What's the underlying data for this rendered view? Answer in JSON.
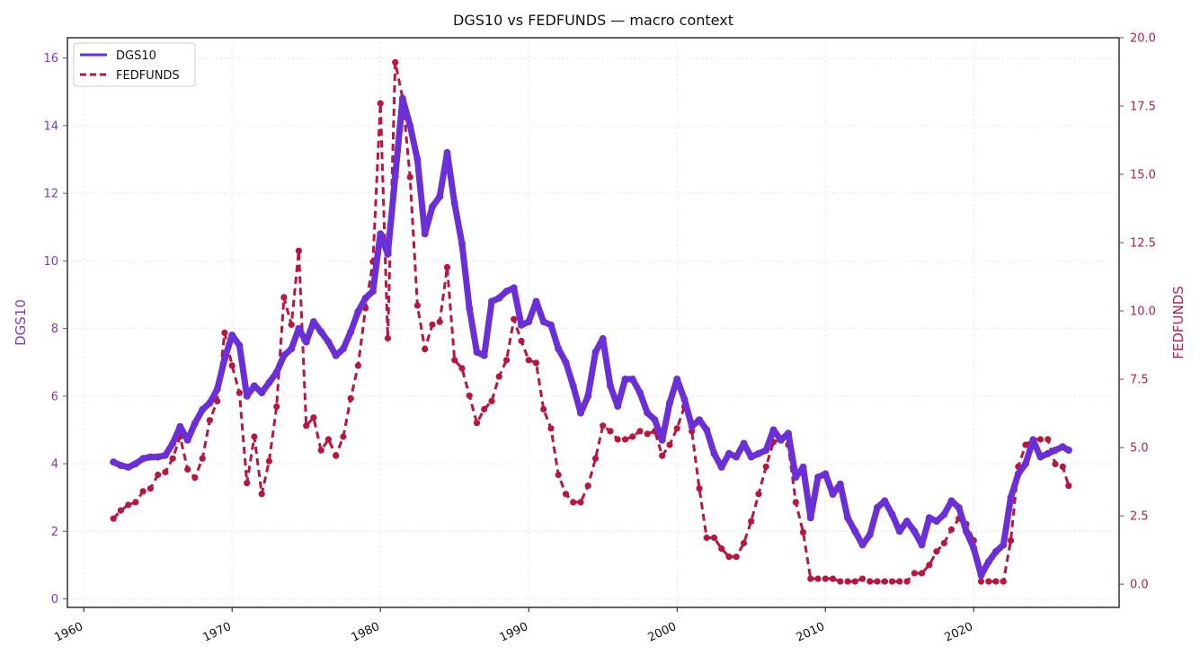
{
  "colors": {
    "dgs10": "#6a2fd6",
    "fedfunds": "#b8163f",
    "left_axis": "#7a3fc4",
    "right_axis": "#b5214f",
    "grid": "#e4e4e4"
  },
  "chart_data": {
    "type": "line",
    "title": "DGS10 vs FEDFUNDS — macro context",
    "xlabel": "",
    "ylabel_left": "DGS10",
    "ylabel_right": "FEDFUNDS",
    "xlim": [
      1958.9,
      2029.8
    ],
    "ylim_left": [
      -0.25,
      16.6
    ],
    "ylim_right": [
      -0.85,
      20.0
    ],
    "x_ticks": [
      "1960",
      "1970",
      "1980",
      "1990",
      "2000",
      "2010",
      "2020"
    ],
    "y_left_ticks": [
      "0",
      "2",
      "4",
      "6",
      "8",
      "10",
      "12",
      "14",
      "16"
    ],
    "y_right_ticks": [
      "0.0",
      "2.5",
      "5.0",
      "7.5",
      "10.0",
      "12.5",
      "15.0",
      "17.5",
      "20.0"
    ],
    "grid": true,
    "legend_position": "top-left",
    "series": [
      {
        "name": "DGS10",
        "axis": "left",
        "style": "solid",
        "x": [
          1962.0,
          1962.5,
          1963.0,
          1963.5,
          1964.0,
          1964.5,
          1965.0,
          1965.5,
          1966.0,
          1966.5,
          1967.0,
          1967.5,
          1968.0,
          1968.5,
          1969.0,
          1969.5,
          1970.0,
          1970.5,
          1971.0,
          1971.5,
          1972.0,
          1972.5,
          1973.0,
          1973.5,
          1974.0,
          1974.5,
          1975.0,
          1975.5,
          1976.0,
          1976.5,
          1977.0,
          1977.5,
          1978.0,
          1978.5,
          1979.0,
          1979.5,
          1980.0,
          1980.5,
          1981.0,
          1981.5,
          1982.0,
          1982.5,
          1983.0,
          1983.5,
          1984.0,
          1984.5,
          1985.0,
          1985.5,
          1986.0,
          1986.5,
          1987.0,
          1987.5,
          1988.0,
          1988.5,
          1989.0,
          1989.5,
          1990.0,
          1990.5,
          1991.0,
          1991.5,
          1992.0,
          1992.5,
          1993.0,
          1993.5,
          1994.0,
          1994.5,
          1995.0,
          1995.5,
          1996.0,
          1996.5,
          1997.0,
          1997.5,
          1998.0,
          1998.5,
          1999.0,
          1999.5,
          2000.0,
          2000.5,
          2001.0,
          2001.5,
          2002.0,
          2002.5,
          2003.0,
          2003.5,
          2004.0,
          2004.5,
          2005.0,
          2005.5,
          2006.0,
          2006.5,
          2007.0,
          2007.5,
          2008.0,
          2008.5,
          2009.0,
          2009.5,
          2010.0,
          2010.5,
          2011.0,
          2011.5,
          2012.0,
          2012.5,
          2013.0,
          2013.5,
          2014.0,
          2014.5,
          2015.0,
          2015.5,
          2016.0,
          2016.5,
          2017.0,
          2017.5,
          2018.0,
          2018.5,
          2019.0,
          2019.5,
          2020.0,
          2020.5,
          2021.0,
          2021.5,
          2022.0,
          2022.5,
          2023.0,
          2023.5,
          2024.0,
          2024.5,
          2025.0,
          2025.5,
          2026.0,
          2026.4
        ],
        "values": [
          4.05,
          3.95,
          3.9,
          4.0,
          4.15,
          4.2,
          4.2,
          4.25,
          4.6,
          5.1,
          4.7,
          5.2,
          5.6,
          5.8,
          6.2,
          7.1,
          7.8,
          7.5,
          6.0,
          6.3,
          6.1,
          6.4,
          6.7,
          7.2,
          7.4,
          8.0,
          7.6,
          8.2,
          7.9,
          7.6,
          7.2,
          7.4,
          7.9,
          8.5,
          8.9,
          9.1,
          10.8,
          10.2,
          12.5,
          14.8,
          14.0,
          13.0,
          10.8,
          11.6,
          11.9,
          13.2,
          11.7,
          10.5,
          8.6,
          7.3,
          7.2,
          8.8,
          8.9,
          9.1,
          9.2,
          8.1,
          8.2,
          8.8,
          8.2,
          8.1,
          7.4,
          7.0,
          6.3,
          5.5,
          6.0,
          7.3,
          7.7,
          6.3,
          5.7,
          6.5,
          6.5,
          6.1,
          5.5,
          5.3,
          4.7,
          5.8,
          6.5,
          5.9,
          5.1,
          5.3,
          5.0,
          4.3,
          3.9,
          4.3,
          4.2,
          4.6,
          4.2,
          4.3,
          4.4,
          5.0,
          4.7,
          4.9,
          3.6,
          3.9,
          2.4,
          3.6,
          3.7,
          3.1,
          3.4,
          2.4,
          2.0,
          1.6,
          1.9,
          2.7,
          2.9,
          2.5,
          2.0,
          2.3,
          2.0,
          1.6,
          2.4,
          2.3,
          2.5,
          2.9,
          2.7,
          2.0,
          1.5,
          0.7,
          1.1,
          1.4,
          1.6,
          3.0,
          3.7,
          4.0,
          4.7,
          4.2,
          4.3,
          4.4,
          4.5,
          4.4
        ]
      },
      {
        "name": "FEDFUNDS",
        "axis": "right",
        "style": "dashed",
        "x": [
          1962.0,
          1962.5,
          1963.0,
          1963.5,
          1964.0,
          1964.5,
          1965.0,
          1965.5,
          1966.0,
          1966.5,
          1967.0,
          1967.5,
          1968.0,
          1968.5,
          1969.0,
          1969.5,
          1970.0,
          1970.5,
          1971.0,
          1971.5,
          1972.0,
          1972.5,
          1973.0,
          1973.5,
          1974.0,
          1974.5,
          1975.0,
          1975.5,
          1976.0,
          1976.5,
          1977.0,
          1977.5,
          1978.0,
          1978.5,
          1979.0,
          1979.5,
          1980.0,
          1980.5,
          1981.0,
          1981.5,
          1982.0,
          1982.5,
          1983.0,
          1983.5,
          1984.0,
          1984.5,
          1985.0,
          1985.5,
          1986.0,
          1986.5,
          1987.0,
          1987.5,
          1988.0,
          1988.5,
          1989.0,
          1989.5,
          1990.0,
          1990.5,
          1991.0,
          1991.5,
          1992.0,
          1992.5,
          1993.0,
          1993.5,
          1994.0,
          1994.5,
          1995.0,
          1995.5,
          1996.0,
          1996.5,
          1997.0,
          1997.5,
          1998.0,
          1998.5,
          1999.0,
          1999.5,
          2000.0,
          2000.5,
          2001.0,
          2001.5,
          2002.0,
          2002.5,
          2003.0,
          2003.5,
          2004.0,
          2004.5,
          2005.0,
          2005.5,
          2006.0,
          2006.5,
          2007.0,
          2007.5,
          2008.0,
          2008.5,
          2009.0,
          2009.5,
          2010.0,
          2010.5,
          2011.0,
          2011.5,
          2012.0,
          2012.5,
          2013.0,
          2013.5,
          2014.0,
          2014.5,
          2015.0,
          2015.5,
          2016.0,
          2016.5,
          2017.0,
          2017.5,
          2018.0,
          2018.5,
          2019.0,
          2019.5,
          2020.0,
          2020.5,
          2021.0,
          2021.5,
          2022.0,
          2022.5,
          2023.0,
          2023.5,
          2024.0,
          2024.5,
          2025.0,
          2025.5,
          2026.0,
          2026.4
        ],
        "values": [
          2.4,
          2.7,
          2.9,
          3.0,
          3.4,
          3.5,
          4.0,
          4.1,
          4.6,
          5.4,
          4.2,
          3.9,
          4.6,
          6.0,
          6.7,
          9.2,
          8.0,
          7.0,
          3.7,
          5.4,
          3.3,
          4.5,
          6.5,
          10.5,
          9.5,
          12.2,
          5.8,
          6.1,
          4.9,
          5.3,
          4.7,
          5.4,
          6.8,
          8.0,
          10.1,
          11.8,
          17.6,
          9.0,
          19.1,
          17.8,
          14.9,
          10.2,
          8.6,
          9.5,
          9.6,
          11.6,
          8.2,
          7.9,
          6.9,
          5.9,
          6.4,
          6.7,
          7.6,
          8.2,
          9.7,
          8.9,
          8.2,
          8.1,
          6.4,
          5.7,
          4.0,
          3.3,
          3.0,
          3.0,
          3.6,
          4.6,
          5.8,
          5.6,
          5.3,
          5.3,
          5.4,
          5.6,
          5.5,
          5.6,
          4.7,
          5.1,
          5.7,
          6.5,
          5.6,
          3.5,
          1.7,
          1.7,
          1.3,
          1.0,
          1.0,
          1.5,
          2.3,
          3.3,
          4.3,
          5.2,
          5.3,
          5.1,
          3.0,
          1.9,
          0.2,
          0.2,
          0.2,
          0.2,
          0.1,
          0.1,
          0.1,
          0.2,
          0.1,
          0.1,
          0.1,
          0.1,
          0.1,
          0.1,
          0.4,
          0.4,
          0.7,
          1.2,
          1.5,
          2.0,
          2.4,
          2.2,
          1.6,
          0.1,
          0.1,
          0.1,
          0.1,
          1.6,
          4.3,
          5.1,
          5.3,
          5.3,
          5.3,
          4.4,
          4.3,
          3.6
        ]
      }
    ]
  }
}
